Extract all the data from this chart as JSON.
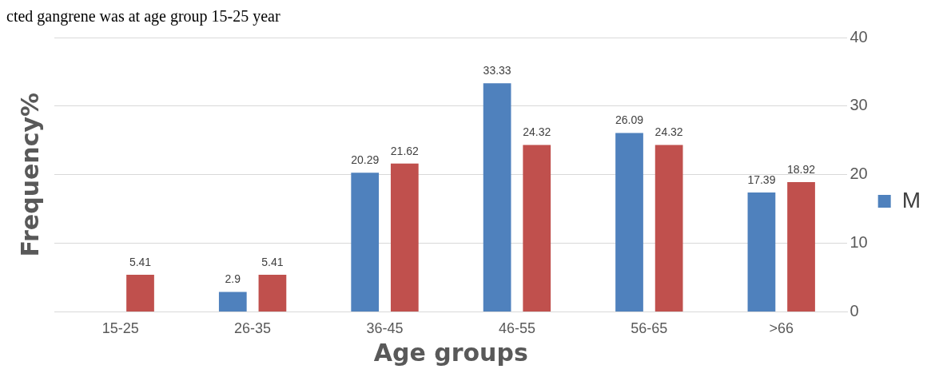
{
  "chart_data": {
    "type": "bar",
    "xlabel": "Age groups",
    "ylabel": "Frequency%",
    "annotations": [
      "cted gangrene was at age group 15-25 year"
    ],
    "categories": [
      "15-25",
      "26-35",
      "36-45",
      "46-55",
      "56-65",
      ">66"
    ],
    "series": [
      {
        "name": "M",
        "color": "#4f81bd",
        "values": [
          null,
          2.9,
          20.29,
          33.33,
          26.09,
          17.39
        ]
      },
      {
        "color": "#c0504d",
        "values": [
          5.41,
          5.41,
          21.62,
          24.32,
          24.32,
          18.92
        ]
      }
    ],
    "ylim": [
      0,
      40
    ],
    "yticks": [
      0,
      10,
      20,
      30,
      40
    ],
    "grid": "y",
    "legend": "right",
    "data_labels": true
  }
}
